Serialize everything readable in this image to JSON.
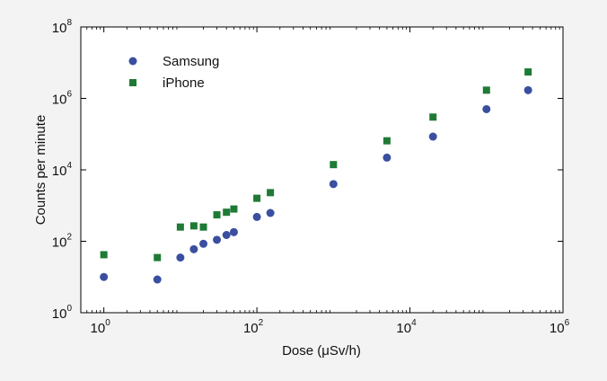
{
  "chart_data": {
    "type": "scatter",
    "xlabel": "Dose (μSv/h)",
    "ylabel": "Counts per minute",
    "x_scale": "log",
    "y_scale": "log",
    "xlim": [
      0.5,
      1000000
    ],
    "ylim": [
      1,
      100000000
    ],
    "x_ticks": [
      {
        "base": "10",
        "exp": "0",
        "value": 1
      },
      {
        "base": "10",
        "exp": "2",
        "value": 100
      },
      {
        "base": "10",
        "exp": "4",
        "value": 10000
      },
      {
        "base": "10",
        "exp": "6",
        "value": 1000000
      }
    ],
    "y_ticks": [
      {
        "base": "10",
        "exp": "0",
        "value": 1
      },
      {
        "base": "10",
        "exp": "2",
        "value": 100
      },
      {
        "base": "10",
        "exp": "4",
        "value": 10000
      },
      {
        "base": "10",
        "exp": "6",
        "value": 1000000
      },
      {
        "base": "10",
        "exp": "8",
        "value": 100000000
      }
    ],
    "grid": false,
    "legend_position": "top-left",
    "series": [
      {
        "name": "Samsung",
        "marker": "circle",
        "color": "#3a4fa0",
        "points": [
          [
            1,
            10
          ],
          [
            5,
            8.5
          ],
          [
            10,
            35
          ],
          [
            15,
            60
          ],
          [
            20,
            85
          ],
          [
            30,
            110
          ],
          [
            40,
            150
          ],
          [
            50,
            180
          ],
          [
            100,
            480
          ],
          [
            150,
            620
          ],
          [
            1000,
            4000
          ],
          [
            5000,
            22000
          ],
          [
            20000,
            85000
          ],
          [
            100000,
            500000
          ],
          [
            350000,
            1700000
          ]
        ]
      },
      {
        "name": "iPhone",
        "marker": "square",
        "color": "#1f7a35",
        "points": [
          [
            1,
            42
          ],
          [
            5,
            35
          ],
          [
            10,
            250
          ],
          [
            15,
            270
          ],
          [
            20,
            250
          ],
          [
            30,
            550
          ],
          [
            40,
            650
          ],
          [
            50,
            800
          ],
          [
            100,
            1600
          ],
          [
            150,
            2300
          ],
          [
            1000,
            14000
          ],
          [
            5000,
            65000
          ],
          [
            20000,
            300000
          ],
          [
            100000,
            1700000
          ],
          [
            350000,
            5500000
          ]
        ]
      }
    ]
  }
}
